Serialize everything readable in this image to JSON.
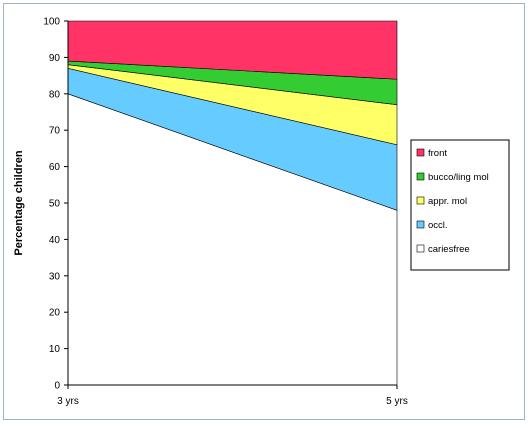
{
  "chart_data": {
    "type": "area",
    "stacked": true,
    "categories": [
      "3 yrs",
      "5 yrs"
    ],
    "ylabel": "Percentage children",
    "xlabel": "",
    "title": "",
    "ylim": [
      0,
      100
    ],
    "yticks": [
      0,
      10,
      20,
      30,
      40,
      50,
      60,
      70,
      80,
      90,
      100
    ],
    "grid": false,
    "legend_position": "right",
    "series": [
      {
        "name": "cariesfree",
        "values": [
          80,
          48
        ],
        "color": "#ffffff"
      },
      {
        "name": "occl.",
        "values": [
          7,
          18
        ],
        "color": "#66ccff"
      },
      {
        "name": "appr. mol",
        "values": [
          1,
          11
        ],
        "color": "#ffff66"
      },
      {
        "name": "bucco/ling mol",
        "values": [
          1,
          7
        ],
        "color": "#33cc33"
      },
      {
        "name": "front",
        "values": [
          11,
          16
        ],
        "color": "#ff3366"
      }
    ],
    "legend_order": [
      "front",
      "bucco/ling mol",
      "appr. mol",
      "occl.",
      "cariesfree"
    ]
  }
}
